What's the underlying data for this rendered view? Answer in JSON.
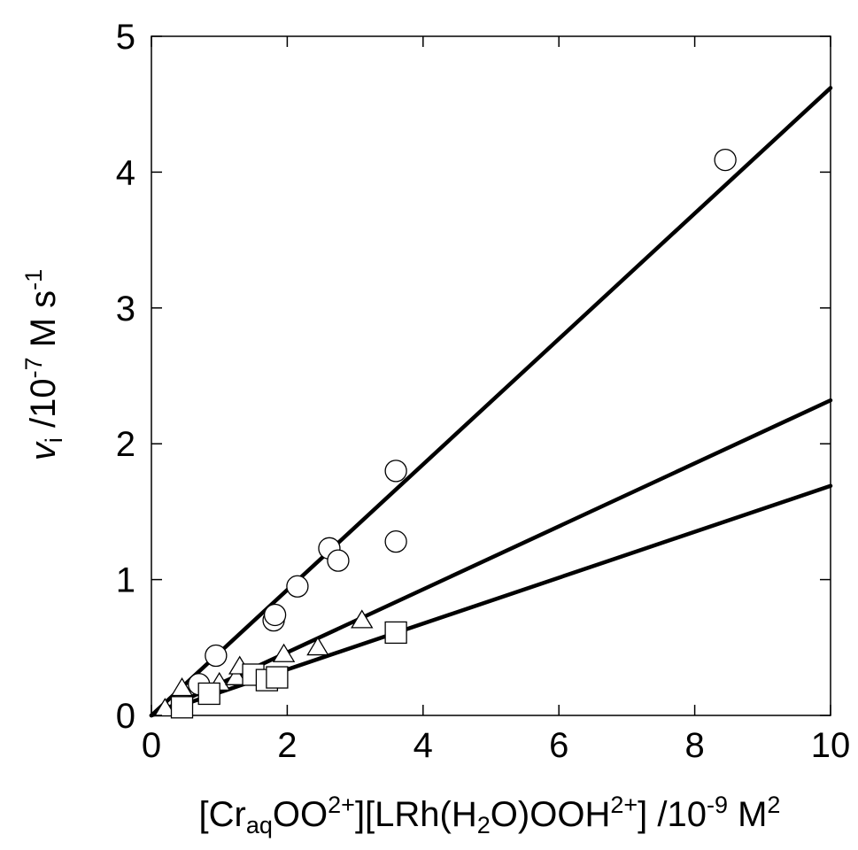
{
  "chart_data": {
    "type": "scatter",
    "title": "",
    "xlim": [
      0,
      10
    ],
    "ylim": [
      0,
      5
    ],
    "x_ticks": [
      0,
      2,
      4,
      6,
      8,
      10
    ],
    "y_ticks": [
      0,
      1,
      2,
      3,
      4,
      5
    ],
    "x_tick_labels": [
      "0",
      "2",
      "4",
      "6",
      "8",
      "10"
    ],
    "y_tick_labels": [
      "0",
      "1",
      "2",
      "3",
      "4",
      "5"
    ],
    "xlabel": {
      "p1": "[Cr",
      "sub1": "aq",
      "p2": "OO",
      "sup1": "2+",
      "p3": "][LRh(H",
      "sub2": "2",
      "p4": "O)OOH",
      "sup2": "2+",
      "p5": "] /10",
      "sup3": "-9",
      "p6": " M",
      "sup4": "2"
    },
    "ylabel": {
      "var": "v",
      "sub": "i",
      "p1": " /10",
      "sup1": "-7",
      "p2": " M s",
      "sup2": "-1"
    },
    "grid": false,
    "legend": "none",
    "series": [
      {
        "marker": "circle",
        "points": [
          [
            0.7,
            0.23
          ],
          [
            0.95,
            0.44
          ],
          [
            1.8,
            0.7
          ],
          [
            1.82,
            0.74
          ],
          [
            2.15,
            0.95
          ],
          [
            2.62,
            1.23
          ],
          [
            2.75,
            1.14
          ],
          [
            3.6,
            1.8
          ],
          [
            3.6,
            1.28
          ],
          [
            8.45,
            4.09
          ]
        ],
        "fit_slope": 0.462
      },
      {
        "marker": "triangle",
        "points": [
          [
            0.2,
            0.05
          ],
          [
            0.45,
            0.2
          ],
          [
            1.0,
            0.24
          ],
          [
            1.25,
            0.28
          ],
          [
            1.3,
            0.36
          ],
          [
            1.95,
            0.45
          ],
          [
            2.45,
            0.5
          ],
          [
            3.1,
            0.7
          ]
        ],
        "fit_slope": 0.232
      },
      {
        "marker": "square",
        "points": [
          [
            0.45,
            0.06
          ],
          [
            0.85,
            0.16
          ],
          [
            1.5,
            0.3
          ],
          [
            1.7,
            0.26
          ],
          [
            1.85,
            0.28
          ],
          [
            3.6,
            0.61
          ]
        ],
        "fit_slope": 0.169
      }
    ]
  }
}
